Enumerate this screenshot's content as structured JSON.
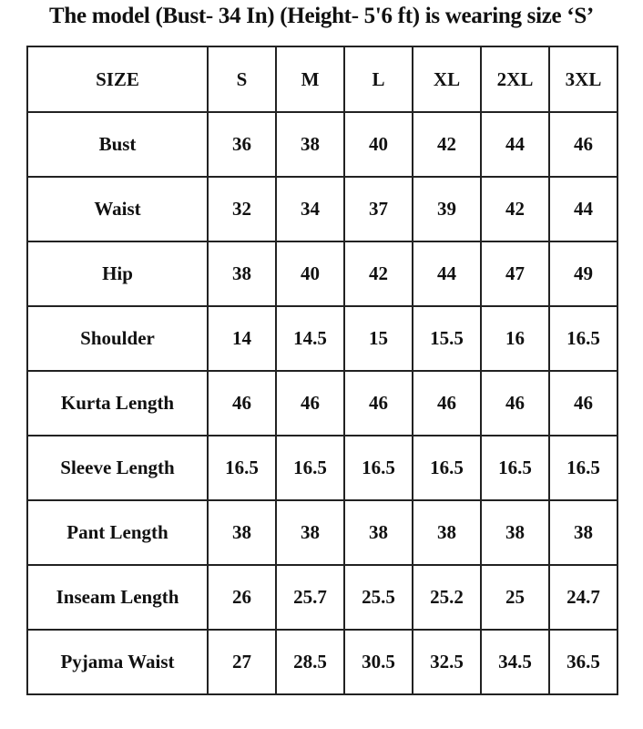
{
  "title": "The model (Bust- 34 In) (Height- 5'6 ft) is wearing size ‘S’",
  "table": {
    "header": [
      "SIZE",
      "S",
      "M",
      "L",
      "XL",
      "2XL",
      "3XL"
    ],
    "rows": [
      {
        "label": "Bust",
        "values": [
          "36",
          "38",
          "40",
          "42",
          "44",
          "46"
        ]
      },
      {
        "label": "Waist",
        "values": [
          "32",
          "34",
          "37",
          "39",
          "42",
          "44"
        ]
      },
      {
        "label": "Hip",
        "values": [
          "38",
          "40",
          "42",
          "44",
          "47",
          "49"
        ]
      },
      {
        "label": "Shoulder",
        "values": [
          "14",
          "14.5",
          "15",
          "15.5",
          "16",
          "16.5"
        ]
      },
      {
        "label": "Kurta Length",
        "values": [
          "46",
          "46",
          "46",
          "46",
          "46",
          "46"
        ]
      },
      {
        "label": "Sleeve Length",
        "values": [
          "16.5",
          "16.5",
          "16.5",
          "16.5",
          "16.5",
          "16.5"
        ]
      },
      {
        "label": "Pant Length",
        "values": [
          "38",
          "38",
          "38",
          "38",
          "38",
          "38"
        ]
      },
      {
        "label": "Inseam Length",
        "values": [
          "26",
          "25.7",
          "25.5",
          "25.2",
          "25",
          "24.7"
        ]
      },
      {
        "label": "Pyjama Waist",
        "values": [
          "27",
          "28.5",
          "30.5",
          "32.5",
          "34.5",
          "36.5"
        ]
      }
    ]
  }
}
